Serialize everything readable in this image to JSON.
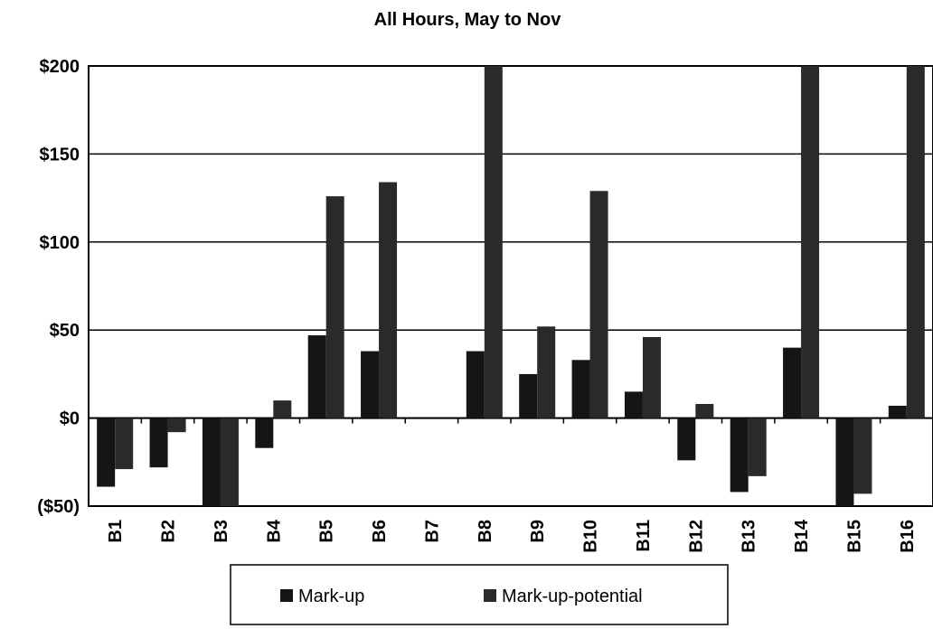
{
  "chart_data": {
    "type": "bar",
    "title": "All Hours, May to Nov",
    "categories": [
      "B1",
      "B2",
      "B3",
      "B4",
      "B5",
      "B6",
      "B7",
      "B8",
      "B9",
      "B10",
      "B11",
      "B12",
      "B13",
      "B14",
      "B15",
      "B16"
    ],
    "series": [
      {
        "name": "Mark-up",
        "color": "#151515",
        "values": [
          -39,
          -28,
          -50,
          -17,
          47,
          38,
          0,
          38,
          25,
          33,
          15,
          -24,
          -42,
          40,
          -50,
          7
        ]
      },
      {
        "name": "Mark-up-potential",
        "color": "#2a2a2a",
        "values": [
          -29,
          -8,
          -50,
          10,
          126,
          134,
          0,
          200,
          52,
          129,
          46,
          8,
          -33,
          200,
          -43,
          200
        ]
      }
    ],
    "ylim": [
      -50,
      200
    ],
    "yticks": [
      {
        "value": -50,
        "label": "($50)"
      },
      {
        "value": 0,
        "label": "$0"
      },
      {
        "value": 50,
        "label": "$50"
      },
      {
        "value": 100,
        "label": "$100"
      },
      {
        "value": 150,
        "label": "$150"
      },
      {
        "value": 200,
        "label": "$200"
      }
    ],
    "grid": true
  }
}
